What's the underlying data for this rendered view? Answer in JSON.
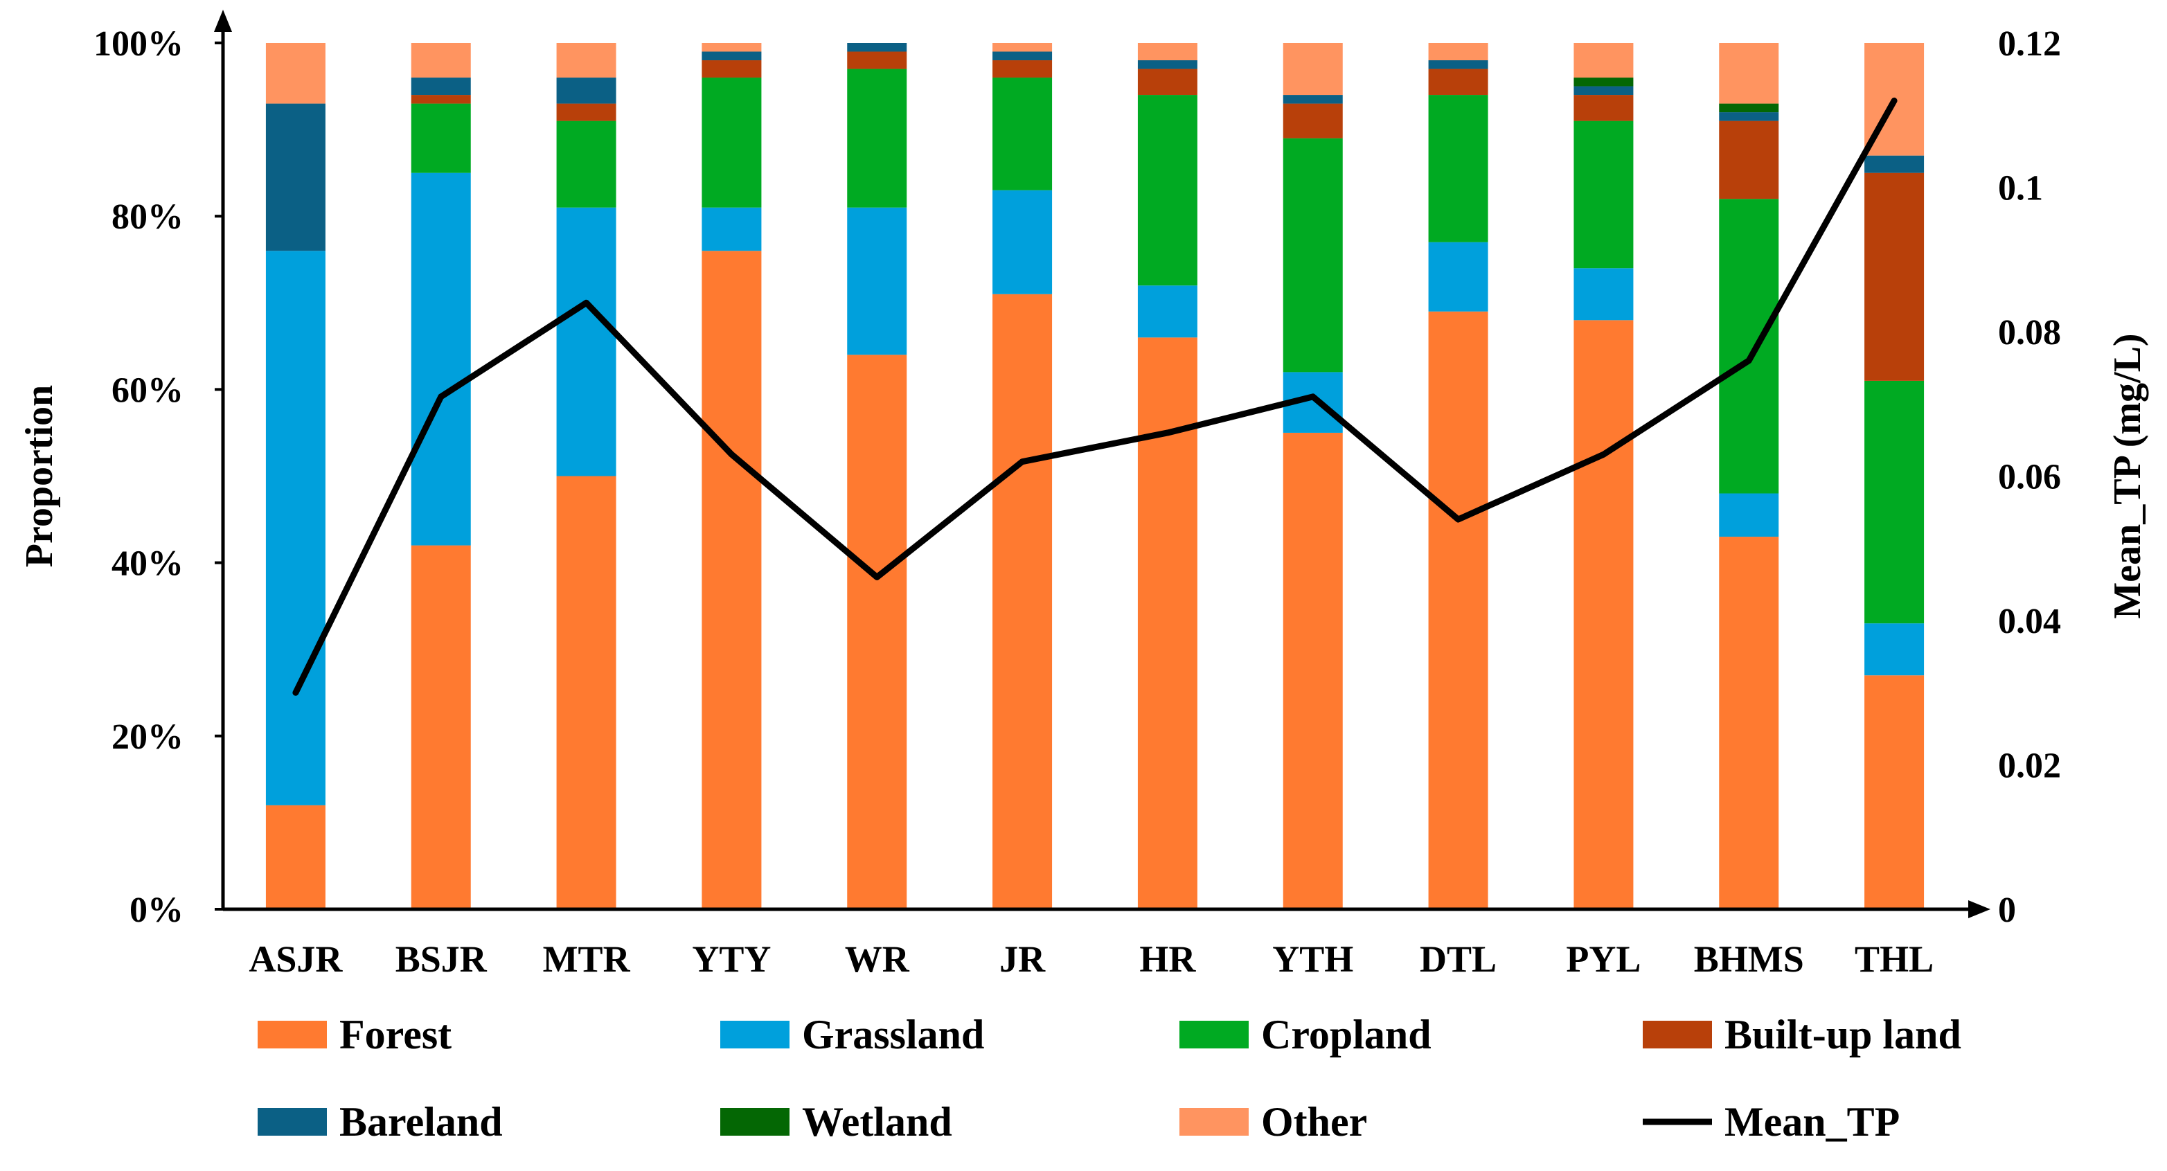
{
  "chart_data": {
    "type": "bar",
    "stacked": true,
    "secondary_line": true,
    "categories": [
      "ASJR",
      "BSJR",
      "MTR",
      "YTY",
      "WR",
      "JR",
      "HR",
      "YTH",
      "DTL",
      "PYL",
      "BHMS",
      "THL"
    ],
    "ylabel": "Proportion",
    "y2label": "Mean_TP (mg/L)",
    "ylim": [
      0,
      1
    ],
    "y2lim": [
      0,
      0.12
    ],
    "yticks": [
      "0%",
      "20%",
      "40%",
      "60%",
      "80%",
      "100%"
    ],
    "y2ticks": [
      "0",
      "0.02",
      "0.04",
      "0.06",
      "0.08",
      "0.1",
      "0.12"
    ],
    "grid": false,
    "legend_position": "bottom",
    "series": [
      {
        "name": "Forest",
        "color": "#FF7A30",
        "values": [
          0.12,
          0.42,
          0.5,
          0.76,
          0.64,
          0.71,
          0.66,
          0.55,
          0.69,
          0.68,
          0.43,
          0.27
        ]
      },
      {
        "name": "Grassland",
        "color": "#00A0DC",
        "values": [
          0.64,
          0.43,
          0.31,
          0.05,
          0.17,
          0.12,
          0.06,
          0.07,
          0.08,
          0.06,
          0.05,
          0.06
        ]
      },
      {
        "name": "Cropland",
        "color": "#00AA22",
        "values": [
          0.0,
          0.08,
          0.1,
          0.15,
          0.16,
          0.13,
          0.22,
          0.27,
          0.17,
          0.17,
          0.34,
          0.28
        ]
      },
      {
        "name": "Built-up land",
        "color": "#B8400A",
        "values": [
          0.0,
          0.01,
          0.02,
          0.02,
          0.02,
          0.02,
          0.03,
          0.04,
          0.03,
          0.03,
          0.09,
          0.24
        ]
      },
      {
        "name": "Bareland",
        "color": "#0B6085",
        "values": [
          0.17,
          0.02,
          0.03,
          0.01,
          0.01,
          0.01,
          0.01,
          0.01,
          0.01,
          0.01,
          0.01,
          0.02
        ]
      },
      {
        "name": "Wetland",
        "color": "#046704",
        "values": [
          0.0,
          0.0,
          0.0,
          0.0,
          0.0,
          0.0,
          0.0,
          0.0,
          0.0,
          0.01,
          0.01,
          0.0
        ]
      },
      {
        "name": "Other",
        "color": "#FF9460",
        "values": [
          0.07,
          0.04,
          0.04,
          0.01,
          0.0,
          0.01,
          0.02,
          0.06,
          0.02,
          0.04,
          0.07,
          0.13
        ]
      }
    ],
    "line_series": {
      "name": "Mean_TP",
      "color": "#000000",
      "values": [
        0.03,
        0.071,
        0.084,
        0.063,
        0.046,
        0.062,
        0.066,
        0.071,
        0.054,
        0.063,
        0.076,
        0.112
      ]
    }
  }
}
